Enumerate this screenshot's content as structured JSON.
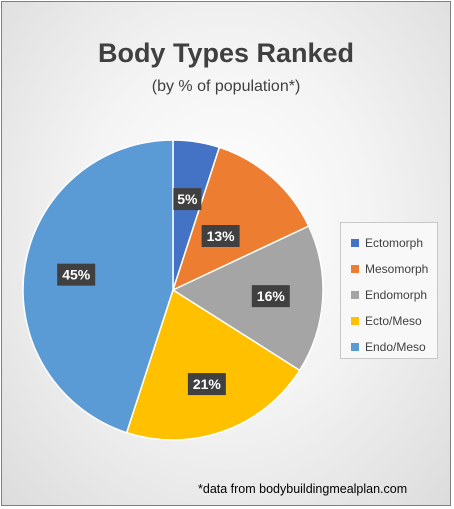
{
  "chart_data": {
    "type": "pie",
    "title": "Body Types Ranked",
    "subtitle": "(by % of population*)",
    "categories": [
      "Ectomorph",
      "Mesomorph",
      "Endomorph",
      "Ecto/Meso",
      "Endo/Meso"
    ],
    "values": [
      5,
      13,
      16,
      21,
      45
    ],
    "data_labels": [
      "5%",
      "13%",
      "16%",
      "21%",
      "45%"
    ],
    "colors": [
      "#4472c4",
      "#ed7d31",
      "#a5a5a5",
      "#ffc000",
      "#5b9bd5"
    ],
    "legend_position": "right",
    "footnote": "*data from bodybuildingmealplan.com"
  }
}
